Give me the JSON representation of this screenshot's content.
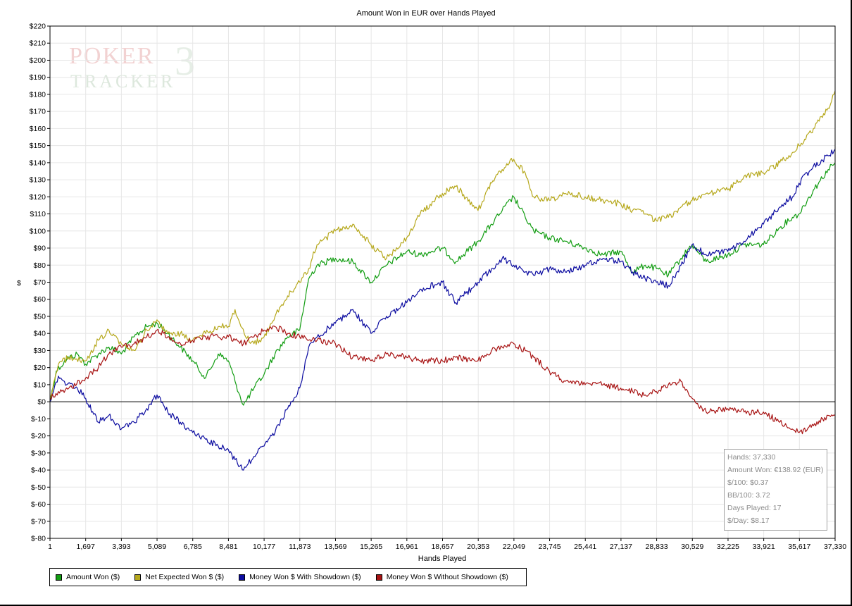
{
  "chart_data": {
    "type": "line",
    "title": "Amount Won in EUR over Hands Played",
    "xlabel": "Hands Played",
    "ylabel": "$",
    "xlim": [
      1,
      37330
    ],
    "ylim": [
      -80,
      220
    ],
    "grid": true,
    "legend_position": "bottom",
    "x_ticks": [
      "1",
      "1,697",
      "3,393",
      "5,089",
      "6,785",
      "8,481",
      "10,177",
      "11,873",
      "13,569",
      "15,265",
      "16,961",
      "18,657",
      "20,353",
      "22,049",
      "23,745",
      "25,441",
      "27,137",
      "28,833",
      "30,529",
      "32,225",
      "33,921",
      "35,617",
      "37,330"
    ],
    "y_ticks": [
      "$220",
      "$210",
      "$200",
      "$190",
      "$180",
      "$170",
      "$160",
      "$150",
      "$140",
      "$130",
      "$120",
      "$110",
      "$100",
      "$90",
      "$80",
      "$70",
      "$60",
      "$50",
      "$40",
      "$30",
      "$20",
      "$10",
      "$0",
      "$-10",
      "$-20",
      "$-30",
      "$-40",
      "$-50",
      "$-60",
      "$-70",
      "$-80"
    ],
    "series": [
      {
        "name": "Amount Won ($)",
        "color": "#129d12",
        "x": [
          1,
          300,
          800,
          1300,
          1697,
          2300,
          2800,
          3393,
          4000,
          4600,
          5089,
          5600,
          6200,
          6785,
          7400,
          8000,
          8481,
          8800,
          9200,
          9700,
          10177,
          10700,
          11300,
          11873,
          12300,
          12700,
          13569,
          14400,
          15265,
          16000,
          16961,
          17600,
          18657,
          19300,
          20353,
          21000,
          21500,
          22049,
          22600,
          23000,
          23745,
          24500,
          25441,
          26300,
          27137,
          27700,
          28300,
          28833,
          29400,
          30000,
          30529,
          31200,
          32225,
          33000,
          33921,
          34700,
          35300,
          35617,
          36300,
          37000,
          37330
        ],
        "y": [
          0,
          18,
          25,
          28,
          22,
          28,
          32,
          28,
          38,
          44,
          46,
          40,
          32,
          24,
          14,
          28,
          24,
          12,
          -2,
          8,
          16,
          28,
          38,
          42,
          72,
          80,
          84,
          82,
          70,
          80,
          88,
          86,
          90,
          82,
          94,
          104,
          112,
          120,
          108,
          100,
          96,
          94,
          90,
          86,
          88,
          76,
          80,
          78,
          74,
          84,
          92,
          82,
          86,
          92,
          92,
          102,
          108,
          110,
          124,
          136,
          140
        ]
      },
      {
        "name": "Net Expected Won $ ($)",
        "color": "#b6a81c",
        "x": [
          1,
          400,
          900,
          1697,
          2300,
          2800,
          3393,
          4000,
          4600,
          5089,
          5600,
          6200,
          6785,
          7400,
          8000,
          8481,
          8800,
          9300,
          9700,
          10177,
          10700,
          11300,
          11873,
          12300,
          12700,
          13569,
          14400,
          15265,
          16000,
          16961,
          17600,
          18657,
          19300,
          20353,
          21000,
          21500,
          22049,
          22600,
          23000,
          23745,
          24500,
          25441,
          26300,
          27137,
          27700,
          28300,
          28833,
          29400,
          30000,
          30529,
          31200,
          32225,
          33000,
          33921,
          34700,
          35300,
          35617,
          36300,
          37000,
          37330
        ],
        "y": [
          2,
          22,
          26,
          24,
          36,
          42,
          34,
          30,
          42,
          48,
          40,
          40,
          36,
          40,
          44,
          44,
          54,
          38,
          34,
          38,
          50,
          62,
          70,
          78,
          92,
          100,
          104,
          92,
          84,
          96,
          110,
          122,
          126,
          112,
          128,
          136,
          142,
          134,
          120,
          118,
          122,
          120,
          118,
          116,
          112,
          110,
          106,
          108,
          114,
          118,
          122,
          124,
          132,
          134,
          140,
          146,
          150,
          160,
          172,
          182
        ]
      },
      {
        "name": "Money Won $ With Showdown ($)",
        "color": "#0c0ca0",
        "x": [
          1,
          400,
          800,
          1300,
          1697,
          2300,
          2800,
          3393,
          4000,
          4600,
          5089,
          5600,
          6200,
          6785,
          7400,
          8000,
          8481,
          8800,
          9200,
          9700,
          10177,
          10700,
          11300,
          11873,
          12300,
          12700,
          13569,
          14400,
          15265,
          16000,
          16961,
          17600,
          18657,
          19300,
          20353,
          21000,
          21500,
          22049,
          22600,
          23000,
          23745,
          24500,
          25441,
          26300,
          27137,
          27700,
          28300,
          28833,
          29400,
          30000,
          30529,
          31200,
          32225,
          33000,
          33921,
          34700,
          35300,
          35617,
          36300,
          37000,
          37330
        ],
        "y": [
          0,
          15,
          10,
          8,
          2,
          -12,
          -8,
          -16,
          -12,
          -4,
          4,
          -6,
          -12,
          -18,
          -22,
          -26,
          -28,
          -34,
          -40,
          -32,
          -26,
          -18,
          -4,
          8,
          32,
          38,
          46,
          54,
          40,
          50,
          58,
          66,
          70,
          58,
          70,
          78,
          84,
          80,
          76,
          74,
          78,
          76,
          80,
          84,
          82,
          76,
          72,
          70,
          68,
          80,
          92,
          86,
          88,
          94,
          104,
          114,
          120,
          128,
          138,
          144,
          148
        ]
      },
      {
        "name": "Money Won $ Without Showdown ($)",
        "color": "#a81414",
        "x": [
          1,
          400,
          900,
          1697,
          2300,
          2800,
          3393,
          4000,
          4600,
          5089,
          5600,
          6200,
          6785,
          7400,
          8000,
          8481,
          8800,
          9200,
          9700,
          10177,
          10700,
          11300,
          11873,
          12300,
          12700,
          13569,
          14400,
          15265,
          16000,
          16961,
          17600,
          18657,
          19300,
          20353,
          21000,
          21500,
          22049,
          22600,
          23000,
          23745,
          24500,
          25441,
          26300,
          27137,
          27700,
          28300,
          28833,
          29400,
          30000,
          30529,
          31200,
          32225,
          33000,
          33921,
          34700,
          35300,
          35617,
          36300,
          37000,
          37330
        ],
        "y": [
          2,
          6,
          8,
          14,
          20,
          28,
          32,
          34,
          38,
          42,
          38,
          34,
          36,
          38,
          38,
          38,
          36,
          34,
          38,
          42,
          44,
          40,
          38,
          36,
          36,
          34,
          26,
          24,
          28,
          26,
          24,
          24,
          26,
          24,
          30,
          32,
          34,
          30,
          26,
          18,
          12,
          10,
          10,
          8,
          6,
          4,
          6,
          10,
          12,
          2,
          -6,
          -4,
          -6,
          -6,
          -12,
          -16,
          -18,
          -14,
          -8,
          -8
        ]
      }
    ],
    "zero_line": 0
  },
  "stats": {
    "hands": "Hands: 37,330",
    "amount_won": "Amount Won: €138.92 (EUR)",
    "per_100": "$/100: $0.37",
    "bb_100": "BB/100: 3.72",
    "days_played": "Days Played: 17",
    "per_day": "$/Day: $8.17"
  },
  "watermark": {
    "line1": "POKER",
    "line2": "TRACKER",
    "mark": "3"
  }
}
